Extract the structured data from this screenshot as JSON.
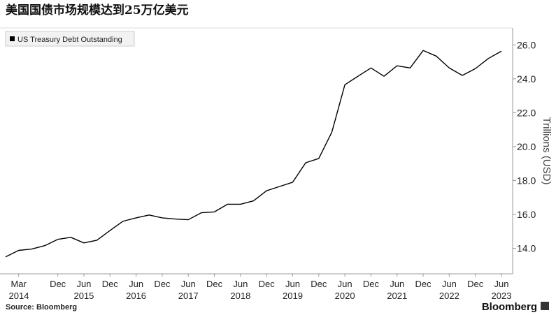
{
  "chart_data": {
    "type": "line",
    "title": "美国国债市场规模达到25万亿美元",
    "y_axis_label": "Trillions (USD)",
    "source": "Source: Bloomberg",
    "logo": "Bloomberg",
    "legend": "upper left",
    "grid": false,
    "categories": [
      null,
      "Mar",
      null,
      null,
      "Dec",
      null,
      "Jun",
      null,
      "Dec",
      null,
      "Jun",
      null,
      "Dec",
      null,
      "Jun",
      null,
      "Dec",
      null,
      "Jun",
      null,
      "Dec",
      null,
      "Jun",
      null,
      "Dec",
      null,
      "Jun",
      null,
      "Dec",
      null,
      "Jun",
      null,
      "Dec",
      null,
      "Jun",
      null,
      "Dec",
      null,
      "Jun"
    ],
    "category_years": [
      null,
      "2014",
      null,
      null,
      null,
      null,
      "2015",
      null,
      null,
      null,
      "2016",
      null,
      null,
      null,
      "2017",
      null,
      null,
      null,
      "2018",
      null,
      null,
      null,
      "2019",
      null,
      null,
      null,
      "2020",
      null,
      null,
      null,
      "2021",
      null,
      null,
      null,
      "2022",
      null,
      null,
      null,
      "2023"
    ],
    "series": [
      {
        "name": "US Treasury Debt Outstanding",
        "color": "#000000",
        "values": [
          13.5,
          13.88,
          13.96,
          14.16,
          14.53,
          14.65,
          14.32,
          14.48,
          15.05,
          15.6,
          15.8,
          15.97,
          15.8,
          15.73,
          15.69,
          16.1,
          16.15,
          16.6,
          16.6,
          16.8,
          17.4,
          17.65,
          17.9,
          19.05,
          19.3,
          20.85,
          23.65,
          24.15,
          24.64,
          24.15,
          24.77,
          24.64,
          25.67,
          25.34,
          24.64,
          24.2,
          24.6,
          25.2,
          25.63
        ]
      }
    ],
    "ylim": [
      12.5,
      27
    ],
    "yticks": [
      {
        "value": 14,
        "label": "14.0"
      },
      {
        "value": 16,
        "label": "16.0"
      },
      {
        "value": 18,
        "label": "18.0"
      },
      {
        "value": 20,
        "label": "20.0"
      },
      {
        "value": 22,
        "label": "22.0"
      },
      {
        "value": 24,
        "label": "24.0"
      },
      {
        "value": 26,
        "label": "26.0"
      }
    ]
  }
}
